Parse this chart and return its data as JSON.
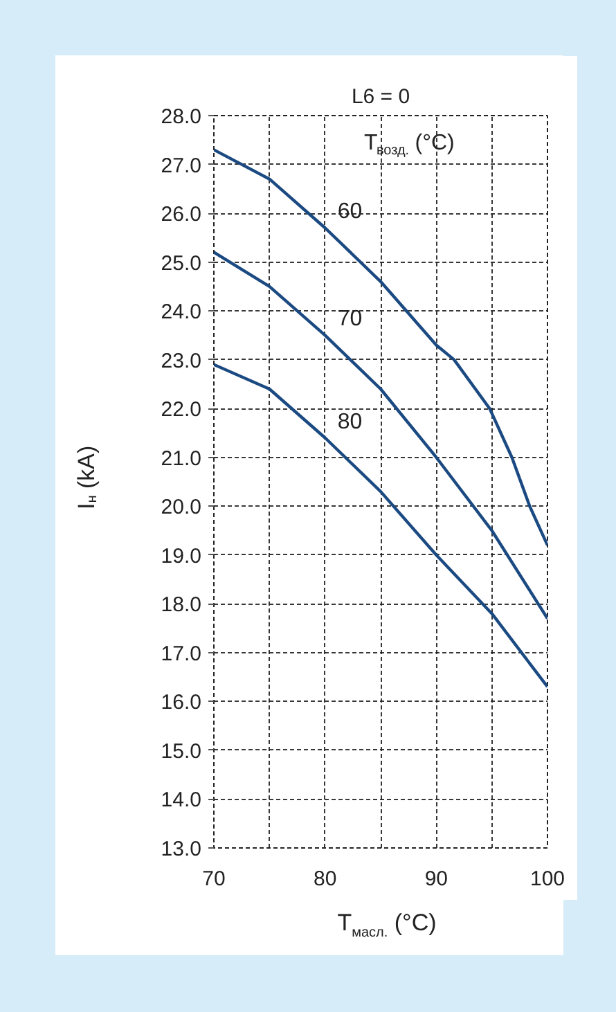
{
  "chart_data": {
    "type": "line",
    "title": "L6 = 0",
    "xlabel": "T$_{масл.}$ (°C)",
    "ylabel": "I$_{н}$ (kA)",
    "legend_title": "T$_{возд.}$ (°C)",
    "legend": false,
    "grid": true,
    "line_style": "solid",
    "marker": "none",
    "xlim": [
      70,
      100
    ],
    "ylim": [
      13,
      28
    ],
    "xticks": [
      70,
      {
        "value": 75,
        "label": null
      },
      80,
      {
        "value": 85,
        "label": null
      },
      90,
      {
        "value": 95,
        "label": null
      },
      100
    ],
    "yticks": [
      {
        "value": 13,
        "label": "13.0"
      },
      {
        "value": 14,
        "label": "14.0"
      },
      {
        "value": 15,
        "label": "15.0"
      },
      {
        "value": 16,
        "label": "16.0"
      },
      {
        "value": 17,
        "label": "17.0"
      },
      {
        "value": 18,
        "label": "18.0"
      },
      {
        "value": 19,
        "label": "19.0"
      },
      {
        "value": 20,
        "label": "20.0"
      },
      {
        "value": 21,
        "label": "21.0"
      },
      {
        "value": 22,
        "label": "22.0"
      },
      {
        "value": 23,
        "label": "23.0"
      },
      {
        "value": 24,
        "label": "24.0"
      },
      {
        "value": 25,
        "label": "25.0"
      },
      {
        "value": 26,
        "label": "26.0"
      },
      {
        "value": 27,
        "label": "27.0"
      },
      {
        "value": 28,
        "label": "28.0"
      }
    ],
    "series": [
      {
        "name": "60",
        "color": "#1b4a82",
        "x": [
          70,
          75,
          80,
          85,
          90,
          91.6,
          94.8,
          96.8,
          98.4,
          100
        ],
        "values": [
          27.3,
          26.7,
          25.7,
          24.6,
          23.3,
          23.0,
          22.0,
          21.0,
          20.0,
          19.2
        ]
      },
      {
        "name": "70",
        "color": "#1b4a82",
        "x": [
          70,
          75,
          80,
          85,
          90,
          95,
          100
        ],
        "values": [
          25.2,
          24.5,
          23.5,
          22.4,
          21.0,
          19.5,
          17.7
        ]
      },
      {
        "name": "80",
        "color": "#1b4a82",
        "x": [
          70,
          75,
          80,
          85,
          90,
          95,
          100
        ],
        "values": [
          22.9,
          22.4,
          21.4,
          20.3,
          19.0,
          17.8,
          16.3
        ]
      }
    ]
  }
}
